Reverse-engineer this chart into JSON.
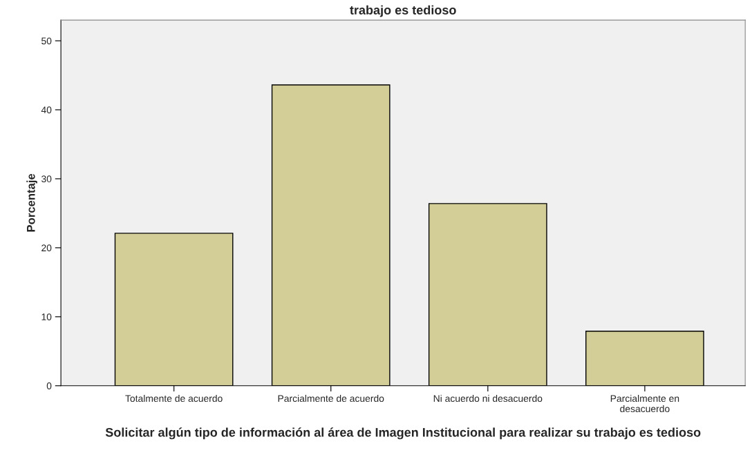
{
  "chart_data": {
    "type": "bar",
    "title": "trabajo es tedioso",
    "xlabel": "Solicitar algún tipo de información al área de Imagen Institucional para realizar su trabajo es tedioso",
    "ylabel": "Porcentaje",
    "categories": [
      "Totalmente de acuerdo",
      "Parcialmente de acuerdo",
      "Ni acuerdo ni desacuerdo",
      "Parcialmente en\ndesacuerdo"
    ],
    "values": [
      22.1,
      43.6,
      26.4,
      7.9
    ],
    "color": "#d3ce97",
    "ylim": [
      0,
      53
    ],
    "yticks": [
      0,
      10,
      20,
      30,
      40,
      50
    ],
    "grid": false,
    "legend": false
  }
}
